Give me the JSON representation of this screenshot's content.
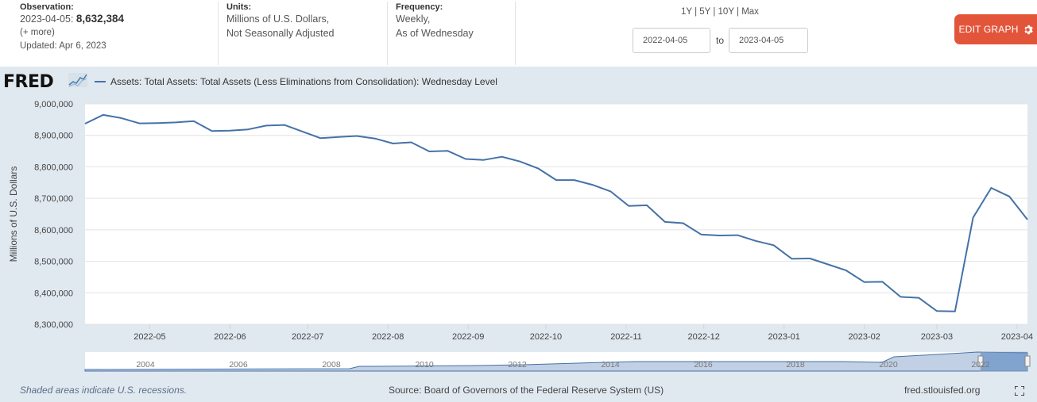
{
  "header": {
    "observation": {
      "label": "Observation:",
      "date_prefix": "2023-04-05:",
      "value": "8,632,384",
      "more": "(+ more)",
      "updated": "Updated: Apr 6, 2023"
    },
    "units": {
      "label": "Units:",
      "line1": "Millions of U.S. Dollars,",
      "line2": "Not Seasonally Adjusted"
    },
    "frequency": {
      "label": "Frequency:",
      "line1": "Weekly,",
      "line2": "As of Wednesday"
    },
    "ranges": [
      "1Y",
      "5Y",
      "10Y",
      "Max"
    ],
    "range_sep": "|",
    "date_from": "2022-04-05",
    "date_to": "2023-04-05",
    "to_label": "to",
    "edit_button": "EDIT GRAPH"
  },
  "graph": {
    "logo": "FRED",
    "legend": "Assets: Total Assets: Total Assets (Less Eliminations from Consolidation): Wednesday Level",
    "line_color": "#4572a7"
  },
  "chart_data": {
    "type": "line",
    "title": "",
    "xlabel": "",
    "ylabel": "Millions of U.S. Dollars",
    "ylim": [
      8300000,
      9000000
    ],
    "y_ticks": [
      "8,300,000",
      "8,400,000",
      "8,500,000",
      "8,600,000",
      "8,700,000",
      "8,800,000",
      "8,900,000",
      "9,000,000"
    ],
    "x_ticks": [
      "2022-05",
      "2022-06",
      "2022-07",
      "2022-08",
      "2022-09",
      "2022-10",
      "2022-11",
      "2022-12",
      "2023-01",
      "2023-02",
      "2023-03",
      "2023-04"
    ],
    "grid": "horizontal",
    "series": [
      {
        "name": "Assets: Total Assets: Total Assets (Less Eliminations from Consolidation): Wednesday Level",
        "x": [
          "2022-04-06",
          "2022-04-13",
          "2022-04-20",
          "2022-04-27",
          "2022-05-04",
          "2022-05-11",
          "2022-05-18",
          "2022-05-25",
          "2022-06-01",
          "2022-06-08",
          "2022-06-15",
          "2022-06-22",
          "2022-06-29",
          "2022-07-06",
          "2022-07-13",
          "2022-07-20",
          "2022-07-27",
          "2022-08-03",
          "2022-08-10",
          "2022-08-17",
          "2022-08-24",
          "2022-08-31",
          "2022-09-07",
          "2022-09-14",
          "2022-09-21",
          "2022-09-28",
          "2022-10-05",
          "2022-10-12",
          "2022-10-19",
          "2022-10-26",
          "2022-11-02",
          "2022-11-09",
          "2022-11-16",
          "2022-11-23",
          "2022-11-30",
          "2022-12-07",
          "2022-12-14",
          "2022-12-21",
          "2022-12-28",
          "2023-01-04",
          "2023-01-11",
          "2023-01-18",
          "2023-01-25",
          "2023-02-01",
          "2023-02-08",
          "2023-02-15",
          "2023-02-22",
          "2023-03-01",
          "2023-03-08",
          "2023-03-15",
          "2023-03-22",
          "2023-03-29",
          "2023-04-05"
        ],
        "values": [
          8937000,
          8965000,
          8955000,
          8938000,
          8939000,
          8941000,
          8945000,
          8914000,
          8915000,
          8919000,
          8931000,
          8933000,
          8912000,
          8891000,
          8895000,
          8898000,
          8890000,
          8874000,
          8878000,
          8849000,
          8851000,
          8825000,
          8822000,
          8832000,
          8817000,
          8795000,
          8758000,
          8758000,
          8743000,
          8722000,
          8676000,
          8678000,
          8625000,
          8621000,
          8585000,
          8582000,
          8583000,
          8565000,
          8551000,
          8508000,
          8509000,
          8490000,
          8471000,
          8434000,
          8435000,
          8387000,
          8384000,
          8342000,
          8341000,
          8639000,
          8733000,
          8706000,
          8632384
        ]
      }
    ],
    "navigator": {
      "x_ticks": [
        "2004",
        "2006",
        "2008",
        "2010",
        "2012",
        "2014",
        "2016",
        "2018",
        "2020",
        "2022"
      ]
    }
  },
  "footer": {
    "recession_note": "Shaded areas indicate U.S. recessions.",
    "source": "Source: Board of Governors of the Federal Reserve System (US)",
    "url": "fred.stlouisfed.org"
  }
}
